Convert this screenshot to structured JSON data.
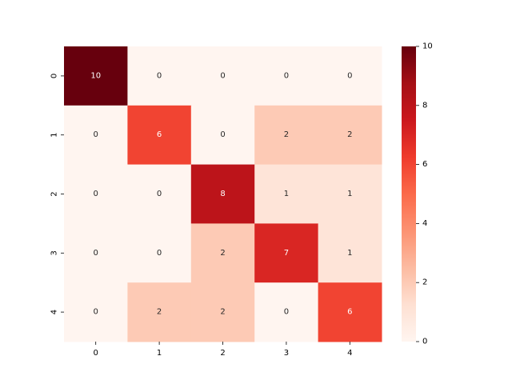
{
  "chart_data": {
    "type": "heatmap",
    "title": "",
    "xlabel": "",
    "ylabel": "",
    "x_categories": [
      "0",
      "1",
      "2",
      "3",
      "4"
    ],
    "y_categories": [
      "0",
      "1",
      "2",
      "3",
      "4"
    ],
    "values": [
      [
        10,
        0,
        0,
        0,
        0
      ],
      [
        0,
        6,
        0,
        2,
        2
      ],
      [
        0,
        0,
        8,
        1,
        1
      ],
      [
        0,
        0,
        2,
        7,
        1
      ],
      [
        0,
        2,
        2,
        0,
        6
      ]
    ],
    "annotated": true,
    "colormap": "Reds",
    "colorbar": {
      "range": [
        0,
        10
      ],
      "ticks": [
        "0",
        "2",
        "4",
        "6",
        "8",
        "10"
      ],
      "placement": "right"
    },
    "grid": false,
    "legend": "none"
  },
  "colors": {
    "low": "#fff5f0",
    "high": "#67000d",
    "annotation_dark_bg": "#ffffff",
    "annotation_light_bg": "#262626"
  }
}
